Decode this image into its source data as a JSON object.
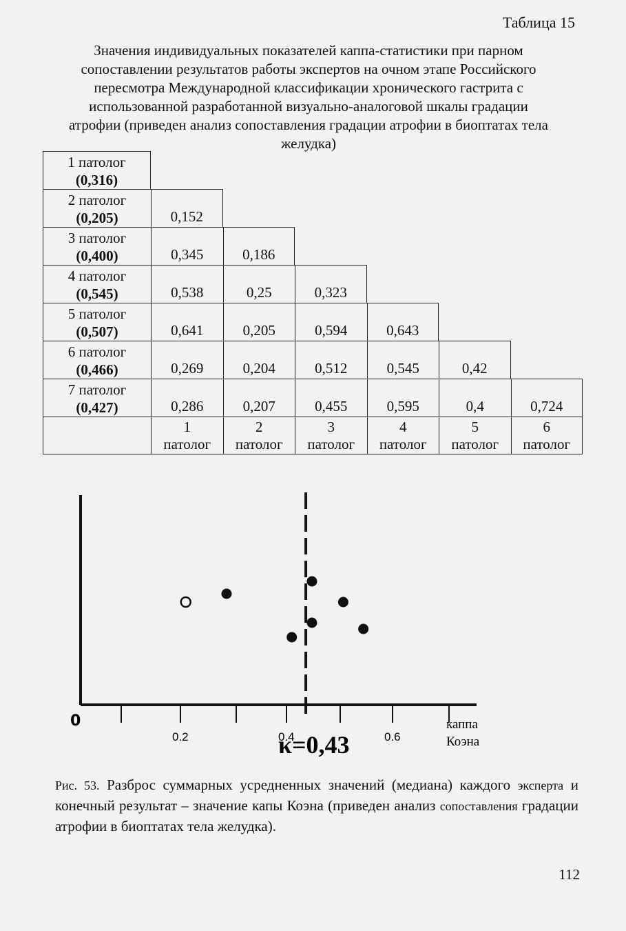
{
  "table_label": "Таблица 15",
  "table_caption": [
    "Значения индивидуальных показателей каппа-статистики при парном",
    "сопоставлении результатов работы экспертов на очном этапе Российского",
    "пересмотра Международной классификации хронического гастрита с",
    "использованной разработанной визуально-аналоговой шкалы градации",
    "атрофии (приведен анализ сопоставления градации атрофии в биоптатах тела",
    "желудка)"
  ],
  "kappa_table": {
    "rows": [
      {
        "name": "1 патолог",
        "summary": "(0,316)",
        "values": []
      },
      {
        "name": "2 патолог",
        "summary": "(0,205)",
        "values": [
          "0,152"
        ]
      },
      {
        "name": "3 патолог",
        "summary": "(0,400)",
        "values": [
          "0,345",
          "0,186"
        ]
      },
      {
        "name": "4 патолог",
        "summary": "(0,545)",
        "values": [
          "0,538",
          "0,25",
          "0,323"
        ]
      },
      {
        "name": "5 патолог",
        "summary": "(0,507)",
        "values": [
          "0,641",
          "0,205",
          "0,594",
          "0,643"
        ]
      },
      {
        "name": "6 патолог",
        "summary": "(0,466)",
        "values": [
          "0,269",
          "0,204",
          "0,512",
          "0,545",
          "0,42"
        ]
      },
      {
        "name": "7 патолог",
        "summary": "(0,427)",
        "values": [
          "0,286",
          "0,207",
          "0,455",
          "0,595",
          "0,4",
          "0,724"
        ]
      }
    ],
    "columns": [
      {
        "num": "1",
        "word": "патолог"
      },
      {
        "num": "2",
        "word": "патолог"
      },
      {
        "num": "3",
        "word": "патолог"
      },
      {
        "num": "4",
        "word": "патолог"
      },
      {
        "num": "5",
        "word": "патолог"
      },
      {
        "num": "6",
        "word": "патолог"
      }
    ]
  },
  "chart_data": {
    "type": "scatter",
    "xlabel": "каппа Коэна",
    "x_ticks": [
      "0.2",
      "0.4",
      "0.6"
    ],
    "origin_label": "0",
    "xlim": [
      0,
      0.75
    ],
    "points": [
      {
        "x": 0.21,
        "level": 1.0,
        "filled": false
      },
      {
        "x": 0.287,
        "level": 1.4,
        "filled": true
      },
      {
        "x": 0.41,
        "level": -0.7,
        "filled": true
      },
      {
        "x": 0.448,
        "level": 0.0,
        "filled": true
      },
      {
        "x": 0.448,
        "level": 2.0,
        "filled": true
      },
      {
        "x": 0.507,
        "level": 1.0,
        "filled": true
      },
      {
        "x": 0.545,
        "level": -0.3,
        "filled": true
      }
    ],
    "reference_line": {
      "x": 0.43,
      "style": "dashed"
    },
    "reference_label": "κ=0,43"
  },
  "figure_caption": {
    "prefix": "Рис. 53.",
    "text": "Разброс суммарных усредненных значений (медиана) каждого",
    "line2_small": "эксперта",
    "line2_rest": "и конечный результат – значение капы Коэна (приведен анализ",
    "line3_small": "сопоставления",
    "line3_rest": "градации атрофии в биоптатах тела желудка)."
  },
  "page_number": "112"
}
